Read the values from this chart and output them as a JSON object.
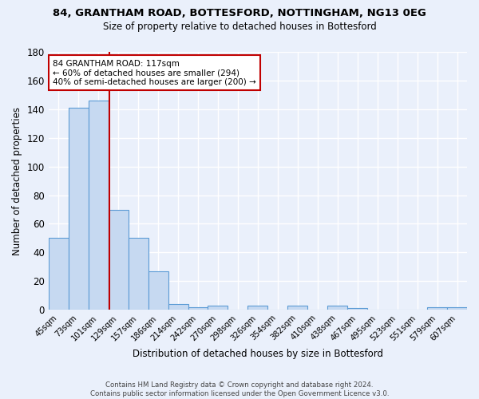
{
  "title_line1": "84, GRANTHAM ROAD, BOTTESFORD, NOTTINGHAM, NG13 0EG",
  "title_line2": "Size of property relative to detached houses in Bottesford",
  "xlabel": "Distribution of detached houses by size in Bottesford",
  "ylabel": "Number of detached properties",
  "categories": [
    "45sqm",
    "73sqm",
    "101sqm",
    "129sqm",
    "157sqm",
    "186sqm",
    "214sqm",
    "242sqm",
    "270sqm",
    "298sqm",
    "326sqm",
    "354sqm",
    "382sqm",
    "410sqm",
    "438sqm",
    "467sqm",
    "495sqm",
    "523sqm",
    "551sqm",
    "579sqm",
    "607sqm"
  ],
  "values": [
    50,
    141,
    146,
    70,
    50,
    27,
    4,
    2,
    3,
    0,
    3,
    0,
    3,
    0,
    3,
    1,
    0,
    0,
    0,
    2,
    2
  ],
  "bar_color": "#c6d9f1",
  "bar_edge_color": "#5b9bd5",
  "vline_color": "#c00000",
  "annotation_line1": "84 GRANTHAM ROAD: 117sqm",
  "annotation_line2": "← 60% of detached houses are smaller (294)",
  "annotation_line3": "40% of semi-detached houses are larger (200) →",
  "annotation_box_color": "white",
  "annotation_box_edge_color": "#c00000",
  "ylim": [
    0,
    180
  ],
  "yticks": [
    0,
    20,
    40,
    60,
    80,
    100,
    120,
    140,
    160,
    180
  ],
  "bg_color": "#eaf0fb",
  "grid_color": "#ffffff",
  "footer_line1": "Contains HM Land Registry data © Crown copyright and database right 2024.",
  "footer_line2": "Contains public sector information licensed under the Open Government Licence v3.0."
}
